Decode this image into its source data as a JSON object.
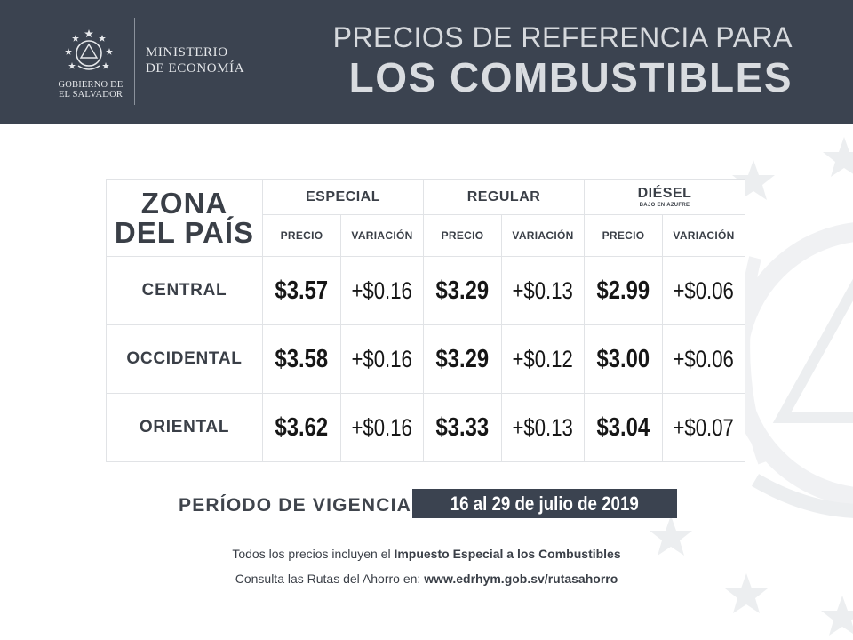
{
  "header": {
    "government": "GOBIERNO DE EL SALVADOR",
    "government_lines": [
      "GOBIERNO DE",
      "EL SALVADOR"
    ],
    "ministry_lines": [
      "MINISTERIO",
      "DE ECONOMÍA"
    ],
    "title_line1": "PRECIOS DE REFERENCIA PARA",
    "title_line2": "LOS COMBUSTIBLES"
  },
  "table": {
    "zone_header_lines": [
      "ZONA",
      "DEL PAÍS"
    ],
    "fuels": [
      {
        "name": "ESPECIAL",
        "sub": ""
      },
      {
        "name": "REGULAR",
        "sub": ""
      },
      {
        "name": "DIÉSEL",
        "sub": "BAJO EN AZUFRE"
      }
    ],
    "price_label": "PRECIO",
    "variation_label": "VARIACIÓN",
    "rows": [
      {
        "zone": "CENTRAL",
        "especial": {
          "price": "$3.57",
          "variation": "+$0.16"
        },
        "regular": {
          "price": "$3.29",
          "variation": "+$0.13"
        },
        "diesel": {
          "price": "$2.99",
          "variation": "+$0.06"
        }
      },
      {
        "zone": "OCCIDENTAL",
        "especial": {
          "price": "$3.58",
          "variation": "+$0.16"
        },
        "regular": {
          "price": "$3.29",
          "variation": "+$0.12"
        },
        "diesel": {
          "price": "$3.00",
          "variation": "+$0.06"
        }
      },
      {
        "zone": "ORIENTAL",
        "especial": {
          "price": "$3.62",
          "variation": "+$0.16"
        },
        "regular": {
          "price": "$3.33",
          "variation": "+$0.13"
        },
        "diesel": {
          "price": "$3.04",
          "variation": "+$0.07"
        }
      }
    ]
  },
  "period": {
    "label": "PERÍODO DE VIGENCIA:",
    "value": "16 al 29 de julio de 2019"
  },
  "notes": {
    "line1_prefix": "Todos los precios incluyen el ",
    "line1_bold": "Impuesto Especial a los Combustibles",
    "line2_prefix": "Consulta las Rutas del Ahorro en: ",
    "line2_bold": "www.edrhym.gob.sv/rutasahorro"
  },
  "colors": {
    "header_bg": "#3b4350",
    "header_text": "#d9dce0",
    "body_text": "#3a3f47",
    "period_bg": "#3b4350"
  },
  "icons": [
    "coat-of-arms-icon",
    "star-icon"
  ]
}
